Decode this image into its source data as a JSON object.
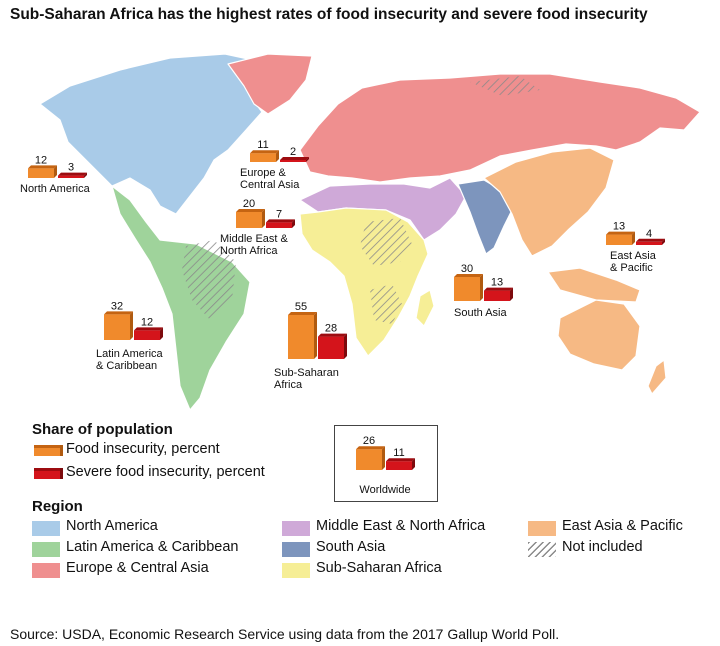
{
  "title": "Sub-Saharan Africa has the highest rates of food insecurity and severe food insecurity",
  "source": "Source: USDA, Economic Research Service using data from the 2017 Gallup World Poll.",
  "colors": {
    "food_insecurity": "#f08a2c",
    "severe_food_insecurity": "#d4141b",
    "north_america": "#a9cbe8",
    "latin_america_caribbean": "#9fd39b",
    "europe_central_asia": "#ef8f8f",
    "middle_east_north_africa": "#cfa9d8",
    "south_asia": "#7d95bd",
    "sub_saharan_africa": "#f6ee96",
    "east_asia_pacific": "#f6b984",
    "not_included": "#c8c8c8"
  },
  "legend": {
    "share_heading": "Share of population",
    "series": [
      {
        "key": "food_insecurity",
        "label": "Food insecurity, percent"
      },
      {
        "key": "severe_food_insecurity",
        "label": "Severe food insecurity, percent"
      }
    ],
    "region_heading": "Region",
    "regions": [
      {
        "key": "north_america",
        "label": "North America"
      },
      {
        "key": "latin_america_caribbean",
        "label": "Latin America & Caribbean"
      },
      {
        "key": "europe_central_asia",
        "label": "Europe & Central Asia"
      },
      {
        "key": "middle_east_north_africa",
        "label": "Middle East & North Africa"
      },
      {
        "key": "south_asia",
        "label": "South Asia"
      },
      {
        "key": "sub_saharan_africa",
        "label": "Sub-Saharan Africa"
      },
      {
        "key": "east_asia_pacific",
        "label": "East Asia & Pacific"
      },
      {
        "key": "not_included",
        "label": "Not included"
      }
    ]
  },
  "chart_data": {
    "type": "bar",
    "series": [
      {
        "name": "Food insecurity, percent"
      },
      {
        "name": "Severe food insecurity, percent"
      }
    ],
    "regions": [
      {
        "key": "north_america",
        "label": [
          "North America"
        ],
        "food_insecurity": 12,
        "severe_food_insecurity": 3
      },
      {
        "key": "europe_central_asia",
        "label": [
          "Europe &",
          "Central Asia"
        ],
        "food_insecurity": 11,
        "severe_food_insecurity": 2
      },
      {
        "key": "middle_east_north_africa",
        "label": [
          "Middle East &",
          "North Africa"
        ],
        "food_insecurity": 20,
        "severe_food_insecurity": 7
      },
      {
        "key": "east_asia_pacific",
        "label": [
          "East Asia",
          "& Pacific"
        ],
        "food_insecurity": 13,
        "severe_food_insecurity": 4
      },
      {
        "key": "south_asia",
        "label": [
          "South Asia"
        ],
        "food_insecurity": 30,
        "severe_food_insecurity": 13
      },
      {
        "key": "latin_america_caribbean",
        "label": [
          "Latin America",
          "& Caribbean"
        ],
        "food_insecurity": 32,
        "severe_food_insecurity": 12
      },
      {
        "key": "sub_saharan_africa",
        "label": [
          "Sub-Saharan",
          "Africa"
        ],
        "food_insecurity": 55,
        "severe_food_insecurity": 28
      },
      {
        "key": "worldwide",
        "label": [
          "Worldwide"
        ],
        "food_insecurity": 26,
        "severe_food_insecurity": 11
      }
    ]
  }
}
